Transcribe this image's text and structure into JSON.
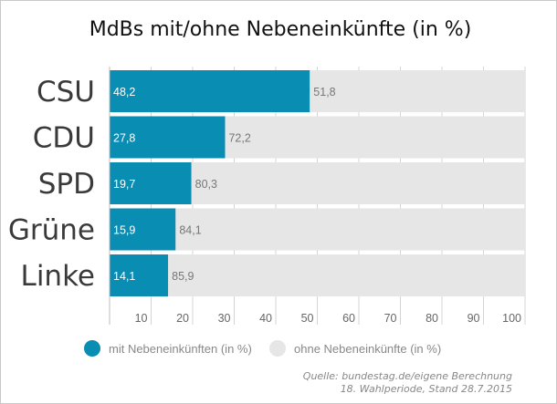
{
  "chart_data": {
    "type": "bar",
    "orientation": "horizontal",
    "stacked": true,
    "title": "MdBs mit/ohne Nebeneinkünfte (in %)",
    "categories": [
      "CSU",
      "CDU",
      "SPD",
      "Grüne",
      "Linke"
    ],
    "series": [
      {
        "name": "mit Nebeneinkünften (in %)",
        "values": [
          48.2,
          27.8,
          19.7,
          15.9,
          14.1
        ],
        "labels": [
          "48,2",
          "27,8",
          "19,7",
          "15,9",
          "14,1"
        ],
        "color": "#0a8db3"
      },
      {
        "name": "ohne Nebeneinkünfte (in %)",
        "values": [
          51.8,
          72.2,
          80.3,
          84.1,
          85.9
        ],
        "labels": [
          "51,8",
          "72,2",
          "80,3",
          "84,1",
          "85,9"
        ],
        "color": "#e6e6e6"
      }
    ],
    "xlim": [
      0,
      100
    ],
    "xticks": [
      10,
      20,
      30,
      40,
      50,
      60,
      70,
      80,
      90,
      100
    ],
    "grid": true,
    "legend_position": "bottom"
  },
  "source": {
    "line1": "Quelle: bundestag.de/eigene Berechnung",
    "line2": "18. Wahlperiode, Stand 28.7.2015"
  }
}
